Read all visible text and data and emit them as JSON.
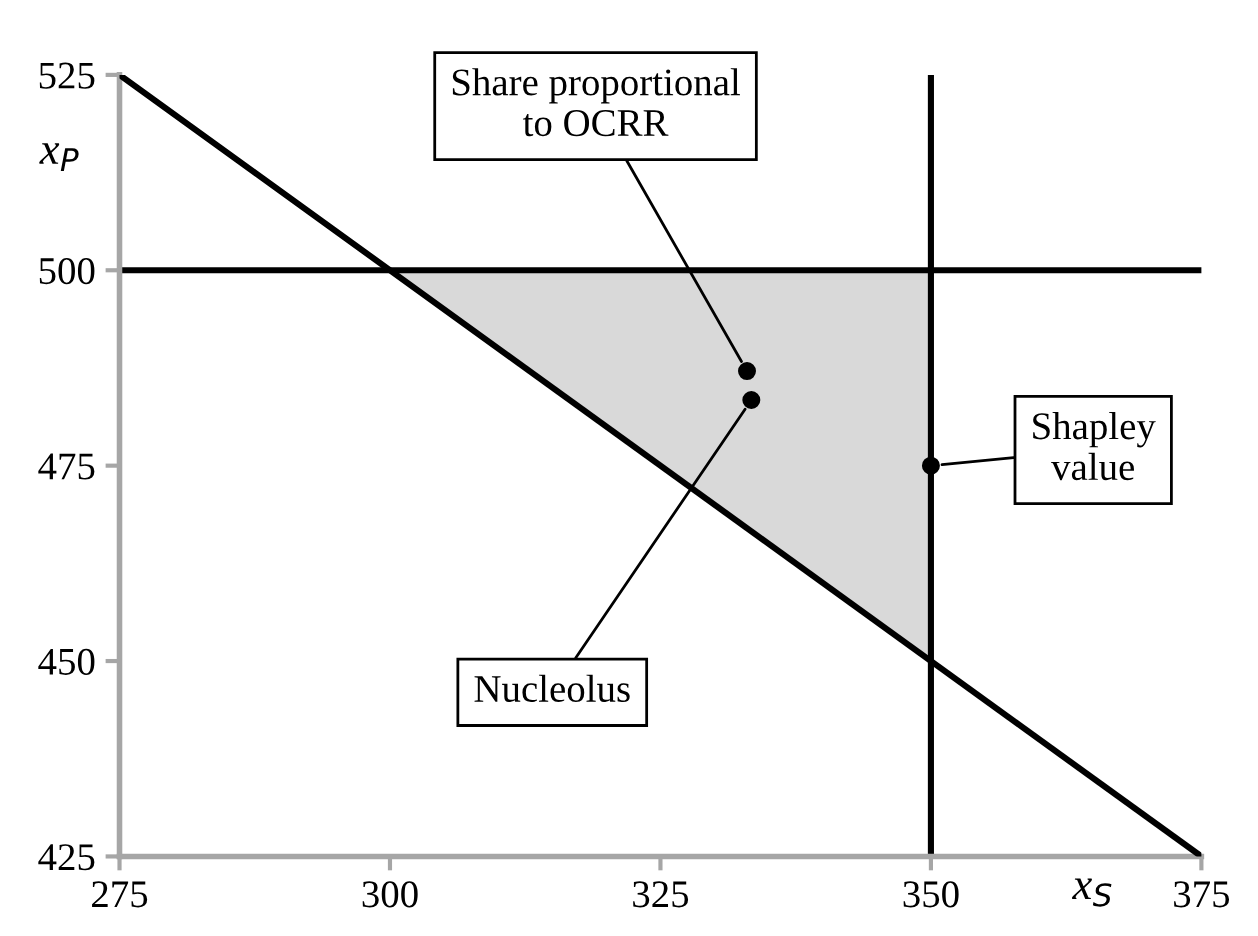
{
  "chart_data": {
    "type": "line",
    "xlabel": "x$_{S}$",
    "ylabel": "x$_{P}$",
    "xlim": [
      275,
      375
    ],
    "ylim": [
      425,
      525
    ],
    "xticks": [
      275,
      300,
      325,
      350,
      375
    ],
    "yticks": [
      425,
      450,
      475,
      500,
      525
    ],
    "grid": false,
    "series": [
      {
        "type": "area",
        "x": [
          300,
          350,
          350
        ],
        "values": [
          500,
          500,
          450
        ],
        "color": "#d9d9d9"
      },
      {
        "x": [
          275,
          375
        ],
        "values": [
          525,
          425
        ],
        "color": "#000000"
      },
      {
        "type": "scatter",
        "x": [
          333.0,
          333.4,
          350
        ],
        "values": [
          487.1,
          483.4,
          475
        ],
        "color": "#000000"
      }
    ],
    "ref_lines": [
      {
        "axis": "y",
        "value": 500,
        "color": "#000000"
      },
      {
        "axis": "x",
        "value": 350,
        "color": "#000000"
      }
    ],
    "annotations": [
      {
        "text": "Share proportional\nto OCRR",
        "x": 333.0,
        "y": 487.1
      },
      {
        "text": "Nucleolus",
        "x": 333.4,
        "y": 483.4
      },
      {
        "text": "Shapley\nvalue",
        "x": 350,
        "y": 475
      }
    ]
  }
}
